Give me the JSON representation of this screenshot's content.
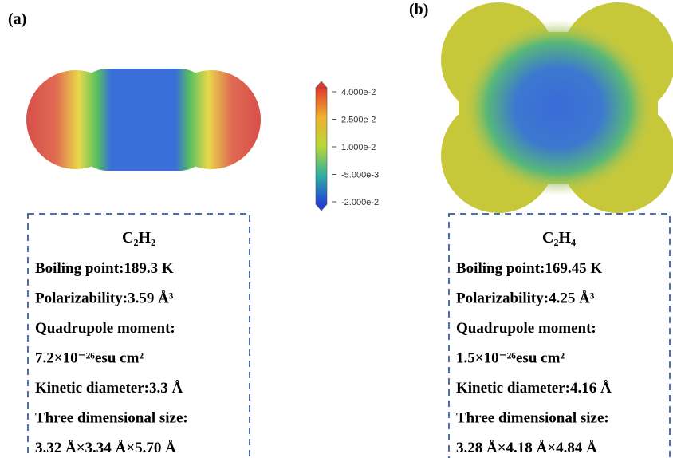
{
  "panels": [
    {
      "label": "(a)",
      "formula": "C₂H₂",
      "lines": [
        "Boiling point:189.3 K",
        "Polarizability:3.59 Å³",
        "Quadrupole moment:",
        "7.2×10⁻²⁶esu cm²",
        "Kinetic diameter:3.3 Å",
        "Three dimensional size:",
        "3.32 Å×3.34 Å×5.70 Å"
      ]
    },
    {
      "label": "(b)",
      "formula": "C₂H₄",
      "lines": [
        "Boiling point:169.45 K",
        "Polarizability:4.25 Å³",
        "Quadrupole moment:",
        "1.5×10⁻²⁶esu cm²",
        "Kinetic diameter:4.16 Å",
        "Three dimensional size:",
        "3.28 Å×4.18 Å×4.84 Å"
      ]
    }
  ],
  "colorbar": {
    "labels": [
      "4.000e-2",
      "2.500e-2",
      "1.000e-2",
      "-5.000e-3",
      "-2.000e-2"
    ]
  }
}
